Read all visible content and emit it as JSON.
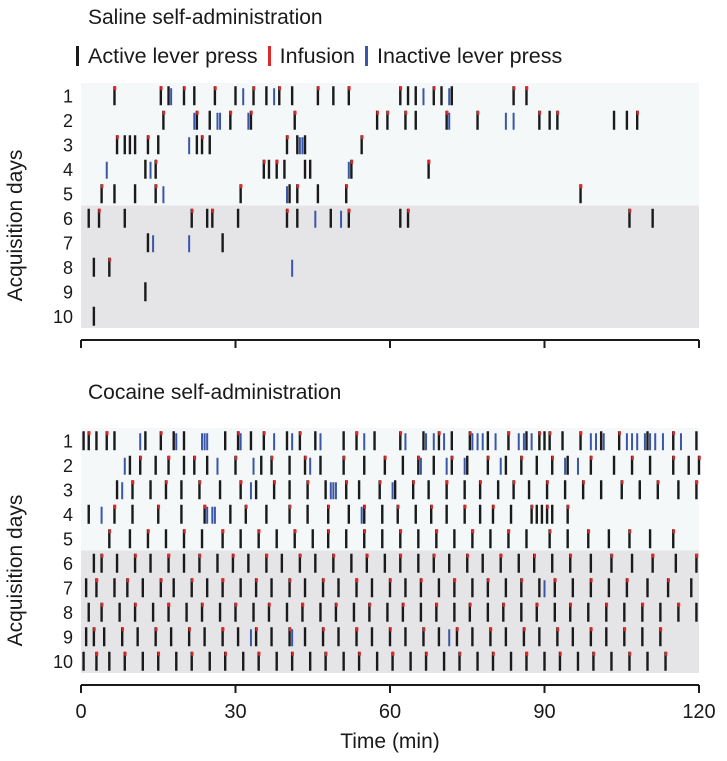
{
  "colors": {
    "active": "#1a1a1a",
    "infusion": "#e02828",
    "inactive": "#3a56a8",
    "bg_light": "#f5f8f8",
    "bg_dark": "#e5e5e7"
  },
  "legend": [
    {
      "label": "Active lever press",
      "color": "#1a1a1a"
    },
    {
      "label": "Infusion",
      "color": "#e02828"
    },
    {
      "label": "Inactive lever press",
      "color": "#3a56a8"
    }
  ],
  "chart_data": [
    {
      "type": "raster",
      "title": "Saline self-administration",
      "ylabel": "Acquisition days",
      "xlabel": "",
      "xlim": [
        0,
        120
      ],
      "days": [
        1,
        2,
        3,
        4,
        5,
        6,
        7,
        8,
        9,
        10
      ],
      "active_events": {
        "1": [
          6.5,
          15.5,
          17,
          20,
          22,
          26,
          30,
          33.5,
          36,
          38.5,
          41,
          46,
          49,
          52,
          62,
          63.5,
          65,
          68.5,
          70,
          72,
          84,
          86.5
        ],
        "2": [
          16,
          22.5,
          25,
          29,
          33,
          41.5,
          57.5,
          59.5,
          63,
          65,
          71,
          77,
          89,
          91,
          92.5,
          103.5,
          106,
          108
        ],
        "3": [
          7,
          8.5,
          9.5,
          10.5,
          13,
          15,
          22.5,
          23.5,
          25,
          40,
          42,
          43.5,
          54.5
        ],
        "4": [
          12.5,
          14.5,
          35.5,
          36.5,
          38,
          39.5,
          43.5,
          44.5,
          52.5,
          67.5
        ],
        "5": [
          4,
          6.5,
          10.5,
          14.5,
          31,
          40.5,
          42,
          46,
          51.5,
          97
        ],
        "6": [
          1.5,
          3.5,
          8.5,
          21.5,
          24.5,
          25.5,
          30.5,
          40,
          42,
          48.5,
          52,
          62,
          63.5,
          106.5,
          111
        ],
        "7": [
          13,
          27.5
        ],
        "8": [
          2.5,
          5.5
        ],
        "9": [
          12.5
        ],
        "10": [
          2.5
        ]
      },
      "infusion_events": {
        "1": [
          6.5,
          15.5,
          20,
          26,
          33.5,
          38.5,
          46,
          52,
          62,
          68.5,
          84,
          86.5
        ],
        "2": [
          16,
          22.5,
          29,
          33,
          41.5,
          57.5,
          59.5,
          63,
          71,
          77,
          89,
          92.5,
          108
        ],
        "3": [
          7,
          13,
          23.5,
          40,
          54.5
        ],
        "4": [
          14.5,
          35.5,
          38,
          52.5,
          67.5
        ],
        "5": [
          4,
          14.5,
          31,
          42,
          51.5,
          97
        ],
        "6": [
          3.5,
          21.5,
          25.5,
          40,
          52,
          63.5,
          106.5
        ],
        "7": [],
        "8": [
          5.5
        ],
        "9": [],
        "10": []
      },
      "inactive_events": {
        "1": [
          17.5,
          31.5,
          37.5,
          66.5,
          71.5
        ],
        "2": [
          22,
          26.5,
          27,
          32.5,
          71.5,
          82.5,
          84
        ],
        "3": [
          21,
          42.5,
          43
        ],
        "4": [
          5,
          13.5,
          52
        ],
        "5": [
          6.5,
          16,
          40
        ],
        "6": [
          45.5,
          50.5
        ],
        "7": [
          14,
          21
        ],
        "8": [
          41
        ],
        "9": [],
        "10": []
      }
    },
    {
      "type": "raster",
      "title": "Cocaine self-administration",
      "ylabel": "Acquisition days",
      "xlabel": "Time (min)",
      "xlim": [
        0,
        120
      ],
      "xticks": [
        0,
        30,
        60,
        90,
        120
      ],
      "days": [
        1,
        2,
        3,
        4,
        5,
        6,
        7,
        8,
        9,
        10
      ],
      "active_events": {
        "1": [
          0.5,
          1.5,
          3,
          5,
          6.5,
          12.5,
          15.5,
          18,
          20,
          28,
          30.5,
          33,
          35.5,
          40,
          42.5,
          45.5,
          51,
          53.5,
          57,
          62,
          66.5,
          69.5,
          72,
          75.5,
          79,
          83,
          86.5,
          89,
          90,
          91,
          93.5,
          97,
          101,
          104.5,
          110,
          115,
          119.5
        ],
        "2": [
          9.5,
          11.5,
          14.5,
          17,
          20,
          22,
          24.5,
          30,
          35,
          37,
          40.5,
          43.5,
          46.5,
          51,
          55,
          59,
          62.5,
          65.5,
          68.5,
          72,
          75,
          79,
          82.5,
          85.5,
          88.5,
          91.5,
          94.5,
          99,
          103.5,
          107,
          110.5,
          115,
          118,
          120
        ],
        "3": [
          7,
          10,
          13.5,
          16.5,
          19.5,
          23,
          27,
          31,
          34,
          37.5,
          40.5,
          44,
          47.5,
          51.5,
          54,
          58,
          61,
          64.5,
          67.5,
          71,
          74.5,
          77.5,
          81,
          84,
          87,
          90.5,
          94,
          97.5,
          101,
          105,
          108.5,
          112,
          116,
          119.5
        ],
        "4": [
          1.5,
          6.5,
          10,
          15,
          19.5,
          24,
          29,
          32,
          36,
          40.5,
          44,
          48,
          52,
          55,
          58.5,
          61.5,
          65,
          68,
          71,
          74.5,
          77.5,
          80,
          83.5,
          87.5,
          88.5,
          89.5,
          90.5,
          91.5,
          94.5
        ],
        "5": [
          5.5,
          9.5,
          13,
          16.5,
          20,
          23.5,
          27.5,
          31,
          34.5,
          38,
          41.5,
          45,
          48,
          51.5,
          55,
          58.5,
          62,
          65.5,
          69,
          72.5,
          76,
          79.5,
          83,
          86.5,
          91,
          94.5,
          98.5,
          102.5,
          106.5,
          110.5,
          115
        ],
        "6": [
          2.5,
          4,
          7,
          10.5,
          13.5,
          17,
          20,
          23,
          26.5,
          29.5,
          32.5,
          36,
          39,
          42.5,
          45.5,
          49,
          52.5,
          55.5,
          59,
          62,
          65.5,
          68.5,
          71.5,
          75,
          78,
          81.5,
          85,
          88,
          91.5,
          95,
          99,
          103,
          107,
          111,
          115.5,
          119.5
        ],
        "7": [
          1,
          3,
          6.5,
          9,
          12,
          15.5,
          18,
          21.5,
          24.5,
          27.5,
          31,
          34,
          37,
          40.5,
          43.5,
          47,
          50,
          53.5,
          56.5,
          60,
          63,
          66,
          69.5,
          72.5,
          76,
          79,
          82.5,
          85.5,
          89,
          92,
          95.5,
          99,
          102.5,
          106,
          110,
          114,
          118.5
        ],
        "8": [
          1.5,
          4,
          7.5,
          10.5,
          14,
          17,
          20.5,
          23.5,
          27,
          30,
          33.5,
          36.5,
          40,
          43,
          46.5,
          49.5,
          53,
          56,
          59.5,
          62.5,
          66,
          69,
          72.5,
          75.5,
          79,
          82,
          85.5,
          88.5,
          92,
          95,
          98.5,
          102,
          105.5,
          109,
          112.5,
          116,
          119.5
        ],
        "9": [
          1,
          2.5,
          4.5,
          8,
          11,
          14.5,
          17.5,
          21,
          24,
          27.5,
          30.5,
          34,
          37,
          40.5,
          43.5,
          47,
          50,
          53.5,
          56.5,
          60,
          63,
          66.5,
          69.5,
          73,
          76,
          79.5,
          82.5,
          86,
          89,
          92.5,
          95.5,
          99,
          102,
          105.5,
          109,
          112.5
        ],
        "10": [
          0.5,
          3,
          5.5,
          8.5,
          12,
          15,
          18.5,
          21.5,
          25,
          28,
          31.5,
          34.5,
          38,
          41,
          44.5,
          47.5,
          51,
          54,
          57.5,
          60.5,
          64,
          67,
          70.5,
          73.5,
          77,
          80,
          83.5,
          86.5,
          90,
          93,
          96.5,
          99.5,
          103,
          106.5,
          110,
          113.5
        ]
      },
      "infusion_events": {
        "1": [
          1.5,
          5,
          15.5,
          30.5,
          35.5,
          42.5,
          53.5,
          62,
          69.5,
          75.5,
          83,
          89,
          91,
          97,
          104.5,
          115
        ],
        "2": [
          11.5,
          17,
          22,
          30,
          37,
          43.5,
          51,
          59,
          65.5,
          72,
          79,
          85.5,
          91.5,
          99,
          107,
          115,
          120
        ],
        "3": [
          10,
          16.5,
          23,
          31,
          37.5,
          44,
          51.5,
          58,
          64.5,
          71,
          77.5,
          84,
          90.5,
          97.5,
          105,
          112,
          119.5
        ],
        "4": [
          6.5,
          15,
          24,
          32,
          40.5,
          48,
          55,
          61.5,
          68,
          74.5,
          80,
          87.5,
          90.5,
          94.5
        ],
        "5": [
          5.5,
          13,
          20,
          27.5,
          34.5,
          41.5,
          48,
          55,
          62,
          69,
          76,
          83,
          91,
          98.5,
          106.5,
          115
        ],
        "6": [
          4,
          10.5,
          17,
          23,
          29.5,
          36,
          42.5,
          49,
          55.5,
          62,
          68.5,
          75,
          81.5,
          88,
          95,
          103,
          111,
          119.5
        ],
        "7": [
          3,
          9,
          15.5,
          21.5,
          27.5,
          34,
          40.5,
          47,
          53.5,
          60,
          66,
          72.5,
          79,
          85.5,
          92,
          99,
          106,
          114
        ],
        "8": [
          4,
          10.5,
          17,
          23.5,
          30,
          36.5,
          43,
          49.5,
          56,
          62.5,
          69,
          75.5,
          82,
          88.5,
          95,
          102,
          109,
          116
        ],
        "9": [
          2.5,
          8,
          14.5,
          21,
          27.5,
          34,
          40.5,
          47,
          53.5,
          60,
          66.5,
          73,
          79.5,
          86,
          92.5,
          99,
          105.5,
          112.5
        ],
        "10": [
          3,
          8.5,
          15,
          21.5,
          28,
          34.5,
          41,
          47.5,
          54,
          60.5,
          67,
          73.5,
          80,
          86.5,
          93,
          99.5,
          106.5,
          113.5
        ]
      },
      "inactive_events": {
        "1": [
          11.5,
          18.5,
          23.5,
          24,
          24.5,
          31,
          37.5,
          41,
          46.5,
          55,
          63,
          67,
          68.5,
          70.5,
          76,
          77,
          78,
          80.5,
          85,
          86,
          87.5,
          99,
          100,
          101.5,
          106,
          107,
          108,
          109.5,
          110.5,
          111.5,
          113,
          116.5
        ],
        "2": [
          8.5,
          26.5,
          33.5,
          44.5,
          66,
          71,
          74.5,
          81.5,
          94,
          96.5
        ],
        "3": [
          8,
          33,
          48.5,
          49,
          49.5,
          60.5,
          97.5,
          108.5
        ],
        "4": [
          1.5,
          4,
          24.5,
          25.5,
          26,
          54.5
        ],
        "5": [],
        "6": [],
        "7": [
          90
        ],
        "8": [],
        "9": [
          33,
          40.5,
          41,
          71.5
        ],
        "10": []
      }
    }
  ],
  "x_axis": {
    "label": "Time (min)",
    "ticks": [
      "0",
      "30",
      "60",
      "90",
      "120"
    ]
  }
}
